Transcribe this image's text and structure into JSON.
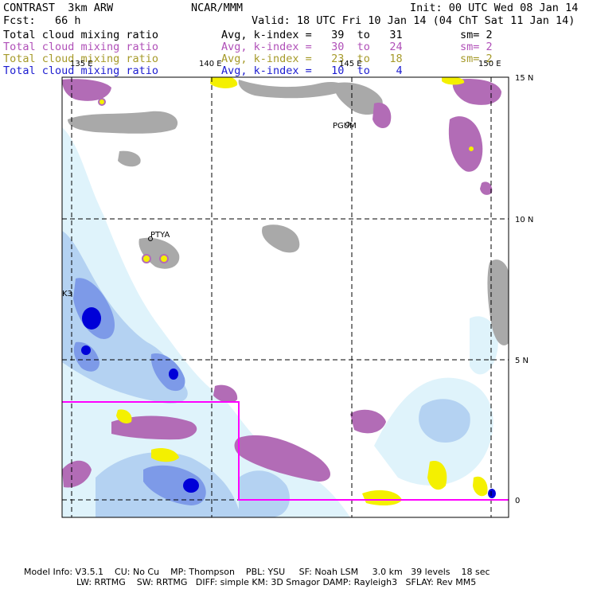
{
  "header": {
    "model_line": "CONTRAST  3km ARW",
    "center_line": "NCAR/MMM",
    "init_line": "Init: 00 UTC Wed 08 Jan 14",
    "fcst_line": "Fcst:   66 h",
    "valid_line": "Valid: 18 UTC Fri 10 Jan 14 (04 ChT Sat 11 Jan 14)"
  },
  "fields": [
    {
      "name": "Total cloud mixing ratio",
      "stat": "Avg, k-index =   39  to   31",
      "sm": "sm= 2",
      "color": "#000000"
    },
    {
      "name": "Total cloud mixing ratio",
      "stat": "Avg, k-index =   30  to   24",
      "sm": "sm= 2",
      "color": "#b050b8"
    },
    {
      "name": "Total cloud mixing ratio",
      "stat": "Avg, k-index =   23  to   18",
      "sm": "sm= 2",
      "color": "#a69a2a"
    },
    {
      "name": "Total cloud mixing ratio",
      "stat": "Avg, k-index =   10  to    4",
      "sm": "",
      "color": "#1c1cd0"
    }
  ],
  "map": {
    "lon_labels": [
      "135 E",
      "140 E",
      "145 E",
      "150 E"
    ],
    "lat_labels": [
      "15 N",
      "10 N",
      "5 N",
      "0"
    ],
    "stations": [
      "PGUM",
      "PTYA",
      "K3"
    ],
    "colors": {
      "gray_cloud": "#a9a9a9",
      "purple_cloud": "#b26cb6",
      "yellow_cloud": "#f4f000",
      "blue_light": "#dff3fb",
      "blue_mid": "#b4d2f2",
      "blue_strong": "#7d9ae8",
      "blue_core": "#0000d8",
      "outline": "#ff00ff"
    }
  },
  "footer": {
    "line1": "Model Info: V3.5.1    CU: No Cu    MP: Thompson    PBL: YSU     SF: Noah LSM     3.0 km   39 levels    18 sec",
    "line2": "LW: RRTMG    SW: RRTMG   DIFF: simple KM: 3D Smagor DAMP: Rayleigh3   SFLAY: Rev MM5"
  }
}
